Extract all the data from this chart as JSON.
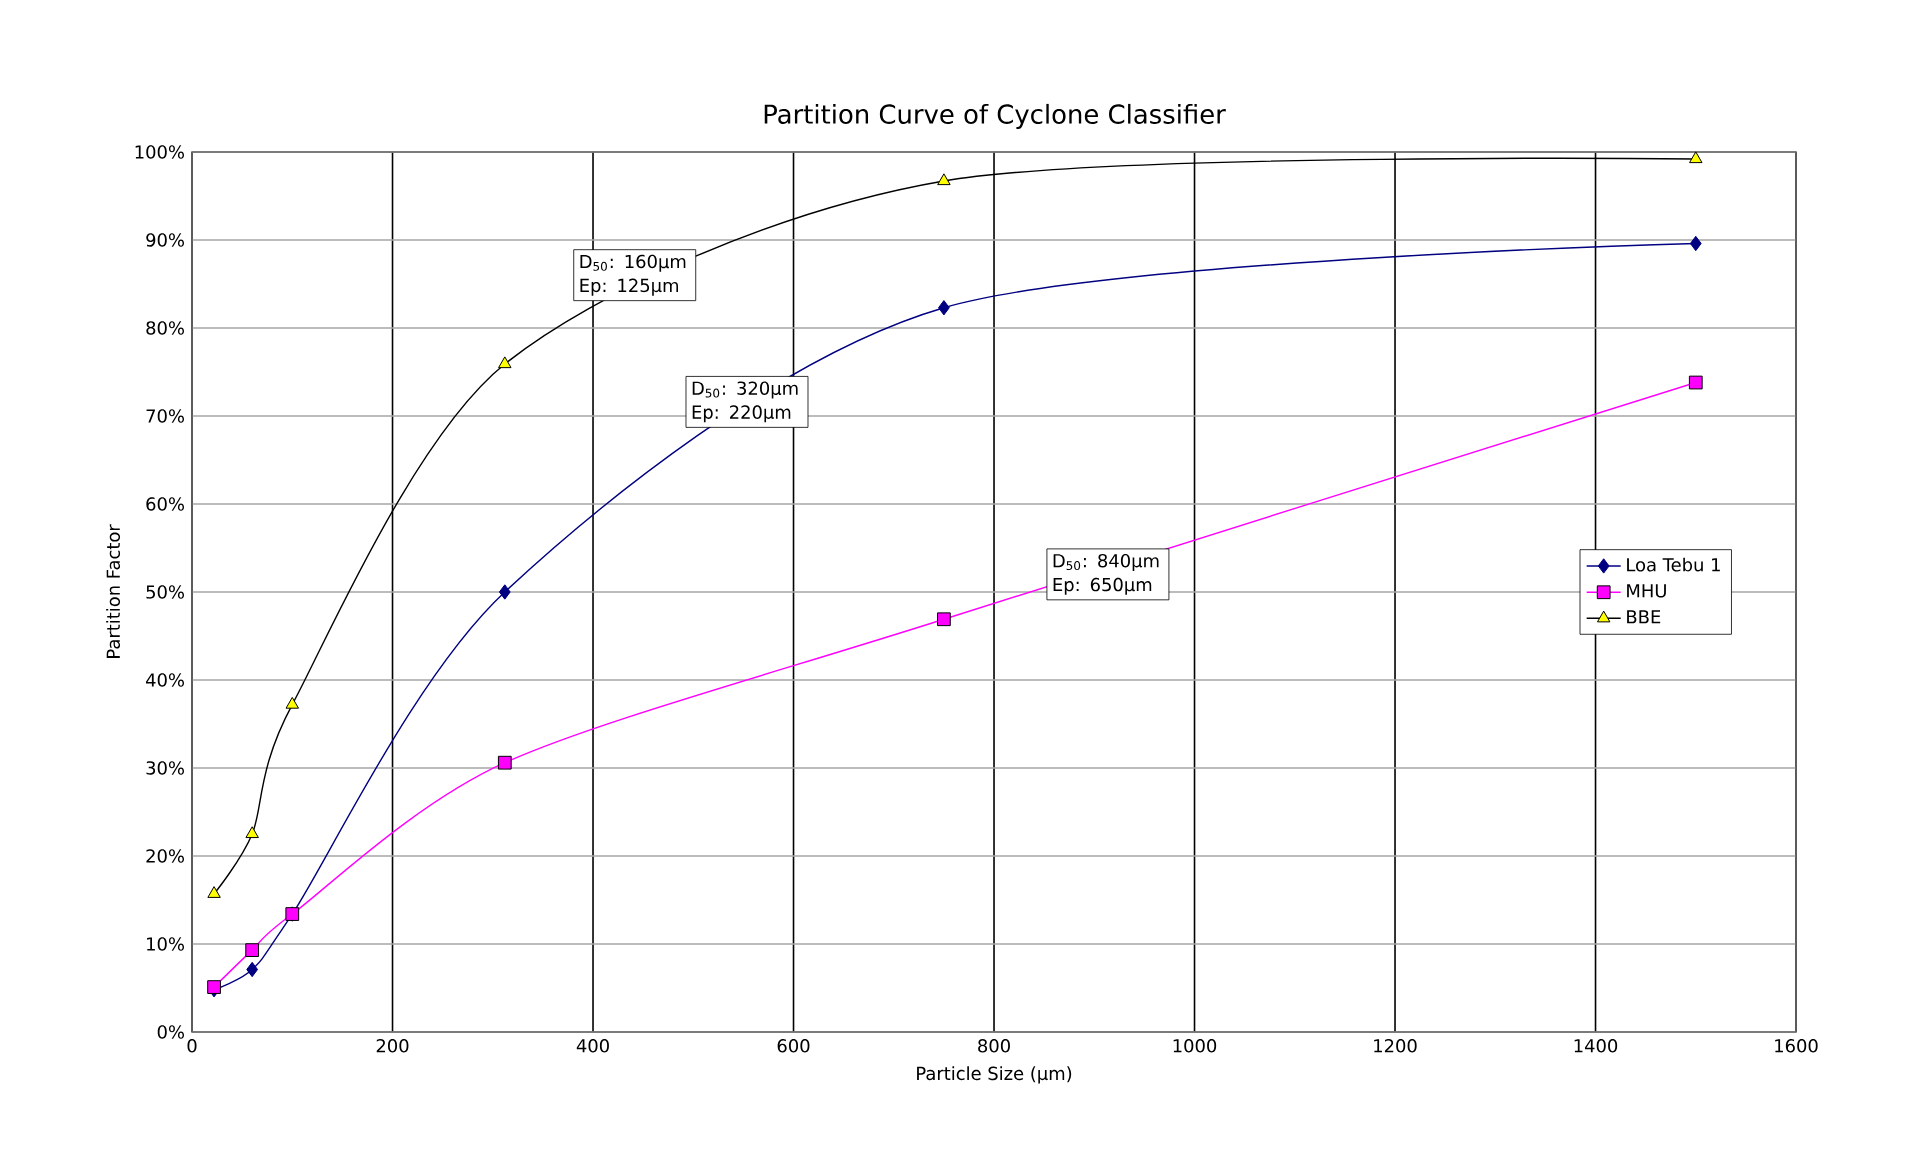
{
  "chart_data": {
    "type": "line",
    "title": "Partition Curve of Cyclone Classifier",
    "xlabel": "Particle Size (µm)",
    "ylabel": "Partition Factor",
    "xlim": [
      0,
      1600
    ],
    "xticks": [
      0,
      200,
      400,
      600,
      800,
      1000,
      1200,
      1400,
      1600
    ],
    "ylim": [
      0,
      100
    ],
    "yticks": [
      {
        "value": 0,
        "label": "0%"
      },
      {
        "value": 10,
        "label": "10%"
      },
      {
        "value": 20,
        "label": "20%"
      },
      {
        "value": 30,
        "label": "30%"
      },
      {
        "value": 40,
        "label": "40%"
      },
      {
        "value": 50,
        "label": "50%"
      },
      {
        "value": 60,
        "label": "60%"
      },
      {
        "value": 70,
        "label": "70%"
      },
      {
        "value": 80,
        "label": "80%"
      },
      {
        "value": 90,
        "label": "90%"
      },
      {
        "value": 100,
        "label": "100%"
      }
    ],
    "grid": true,
    "legend": "right",
    "line_style": "solid",
    "series": [
      {
        "name": "Loa Tebu 1",
        "color": "#000080",
        "marker": "diamond",
        "x": [
          22,
          60,
          100,
          312,
          750,
          1500
        ],
        "values": [
          4.8,
          7.1,
          13.4,
          50,
          82.3,
          89.6
        ]
      },
      {
        "name": "MHU",
        "color": "#ff00ff",
        "marker": "square",
        "x": [
          22,
          60,
          100,
          312,
          750,
          1500
        ],
        "values": [
          5.1,
          9.3,
          13.4,
          30.6,
          46.9,
          73.8
        ]
      },
      {
        "name": "BBE",
        "color": "#000000",
        "colors": [
          "#ffff00",
          "#ffff00",
          "#ffff00",
          "#ffff00",
          "#ffff00",
          "#ffff00"
        ],
        "marker": "triangle",
        "x": [
          22,
          60,
          100,
          312,
          750,
          1500
        ],
        "values": [
          15.7,
          22.5,
          37.2,
          75.9,
          96.7,
          99.2
        ]
      }
    ],
    "annotations": [
      "D$_{50}$: 160µm Ep: 125µm",
      "D$_{50}$: 320µm Ep: 220µm",
      "D$_{50}$: 840µm Ep: 650µm"
    ]
  }
}
